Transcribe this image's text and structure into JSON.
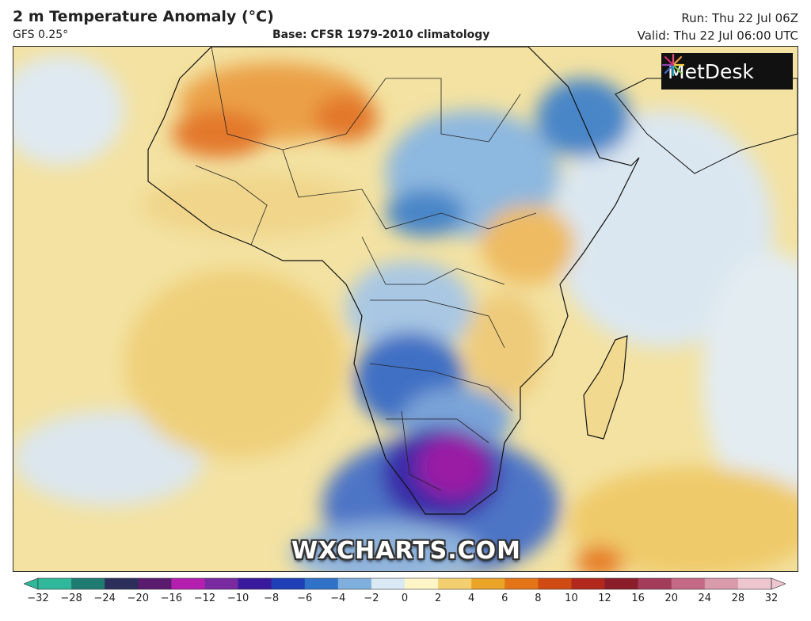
{
  "header": {
    "title": "2 m Temperature Anomaly (°C)",
    "model": "GFS 0.25°",
    "base": "Base: CFSR 1979-2010 climatology",
    "run": "Run: Thu 22 Jul 06Z",
    "valid": "Valid: Thu 22 Jul 06:00 UTC"
  },
  "logo": {
    "text": "MetDesk",
    "icon": "starburst-logo-icon"
  },
  "watermark": "WXCHARTS.COM",
  "colorbar": {
    "ticks": [
      "−32",
      "−28",
      "−24",
      "−20",
      "−16",
      "−12",
      "−10",
      "−8",
      "−6",
      "−4",
      "−2",
      "0",
      "2",
      "4",
      "6",
      "8",
      "10",
      "12",
      "16",
      "20",
      "24",
      "28",
      "32"
    ],
    "colors": [
      "#2fb89a",
      "#1f7a72",
      "#2b2f5a",
      "#5a1a6e",
      "#b51fb0",
      "#7a2aa0",
      "#3a1a9c",
      "#1e3fb5",
      "#2f72c8",
      "#7fb0dd",
      "#dbe9f4",
      "#fff6c8",
      "#f3cf6f",
      "#eaa529",
      "#e37417",
      "#d04b13",
      "#b2281c",
      "#8b1c2a",
      "#a33b5a",
      "#c46a86",
      "#d99aab",
      "#eec6cf"
    ]
  },
  "colors": {
    "ocean_warm": "#f2e3a6",
    "strong_warm": "#e8862a",
    "cold": "#2f72c8",
    "very_cold": "#8a1a9a"
  }
}
